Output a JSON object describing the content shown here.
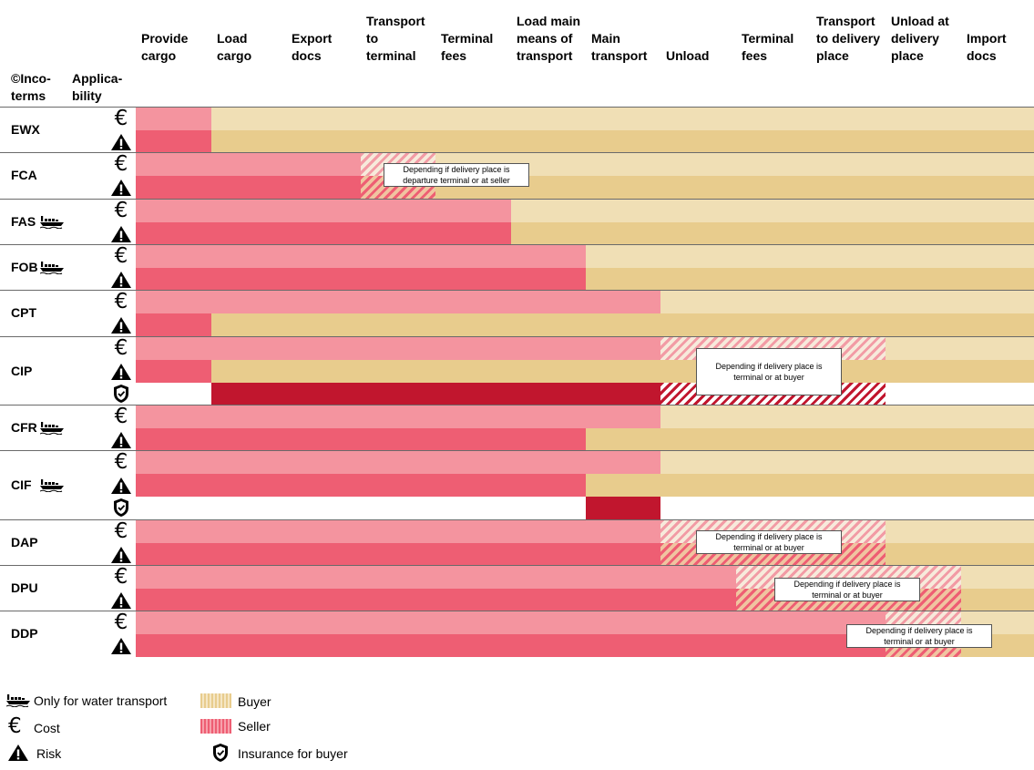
{
  "header": {
    "incoterms_label": "©Inco-\nterms",
    "applicability_label": "Applica-\nbility",
    "columns": [
      "Provide\ncargo",
      "Load\ncargo",
      "Export\ndocs",
      "Transport\nto\nterminal",
      "Terminal\nfees",
      "Load main\nmeans of\ntransport",
      "Main\ntransport",
      "Unload",
      "Terminal\nfees",
      "Transport\nto delivery\nplace",
      "Unload at\ndelivery\nplace",
      "Import\ndocs"
    ]
  },
  "rows": [
    {
      "code": "EWX",
      "water": false
    },
    {
      "code": "FCA",
      "water": false,
      "note": "Depending if delivery place is\ndeparture terminal or  at seller"
    },
    {
      "code": "FAS",
      "water": true
    },
    {
      "code": "FOB",
      "water": true
    },
    {
      "code": "CPT",
      "water": false
    },
    {
      "code": "CIP",
      "water": false,
      "note": "Depending if delivery place is\nterminal or at buyer"
    },
    {
      "code": "CFR",
      "water": true
    },
    {
      "code": "CIF",
      "water": true
    },
    {
      "code": "DAP",
      "water": false,
      "note": "Depending if delivery place is\nterminal or at buyer"
    },
    {
      "code": "DPU",
      "water": false,
      "note": "Depending if delivery place is\nterminal or at buyer"
    },
    {
      "code": "DDP",
      "water": false,
      "note": "Depending if delivery place is\nterminal or at buyer"
    }
  ],
  "legend": {
    "water": "Only for water transport",
    "cost": "Cost",
    "risk": "Risk",
    "buyer": "Buyer",
    "seller": "Seller",
    "insurance": "Insurance for buyer"
  },
  "symbols": {
    "cost": "€"
  },
  "colors": {
    "seller_cost": "#f4949f",
    "seller_risk": "#ee5e73",
    "seller_insurance": "#c1162e",
    "buyer_cost": "#f0dfb5",
    "buyer_risk": "#e8cc8d"
  }
}
